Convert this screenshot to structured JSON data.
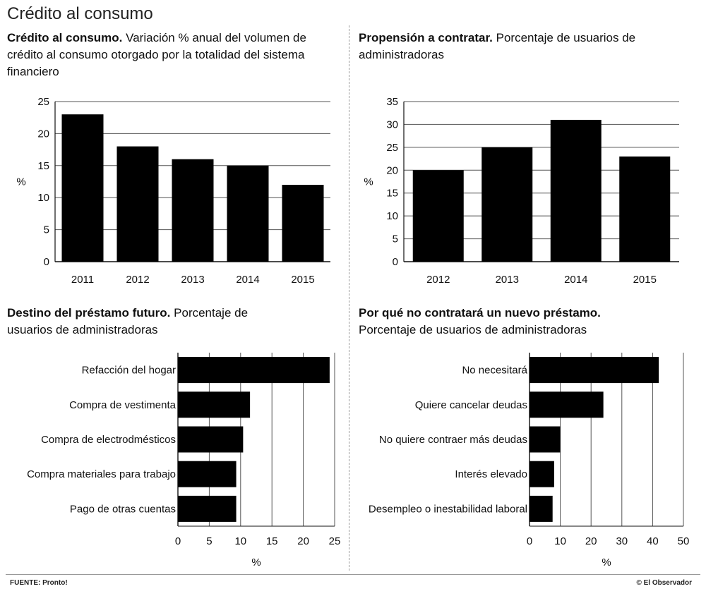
{
  "page": {
    "title": "Crédito al consumo"
  },
  "footer": {
    "source": "FUENTE: Pronto!",
    "credit": "© El Observador"
  },
  "panels": {
    "p1": {
      "title_bold": "Crédito al consumo.",
      "title_rest": " Variación % anual del volumen de crédito al consumo otorgado por la totalidad del sistema financiero"
    },
    "p2": {
      "title_bold": "Propensión a contratar.",
      "title_rest": " Porcentaje de usuarios de administradoras"
    },
    "p3": {
      "title_bold": "Destino del préstamo futuro.",
      "title_rest": " Porcentaje de usuarios de administradoras"
    },
    "p4": {
      "title_bold": "Por qué no contratará un nuevo préstamo.",
      "title_rest": "Porcentaje de usuarios de administradoras"
    }
  },
  "chart_data": [
    {
      "type": "bar",
      "title": "Crédito al consumo. Variación % anual del volumen de crédito al consumo otorgado por la totalidad del sistema financiero",
      "categories": [
        "2011",
        "2012",
        "2013",
        "2014",
        "2015"
      ],
      "values": [
        23,
        18,
        16,
        15,
        12
      ],
      "ylabel": "%",
      "ylim": [
        0,
        25
      ],
      "yticks": [
        0,
        5,
        10,
        15,
        20,
        25
      ],
      "grid": true
    },
    {
      "type": "bar",
      "title": "Propensión a contratar. Porcentaje de usuarios de administradoras",
      "categories": [
        "2012",
        "2013",
        "2014",
        "2015"
      ],
      "values": [
        20,
        25,
        31,
        23
      ],
      "ylabel": "%",
      "ylim": [
        0,
        35
      ],
      "yticks": [
        0,
        5,
        10,
        15,
        20,
        25,
        30,
        35
      ],
      "grid": true
    },
    {
      "type": "bar",
      "orientation": "horizontal",
      "title": "Destino del préstamo futuro. Porcentaje de usuarios de administradoras",
      "categories": [
        "Refacción del hogar",
        "Compra de vestimenta",
        "Compra de electrodmésticos",
        "Compra materiales para trabajo",
        "Pago de otras cuentas"
      ],
      "values": [
        24.2,
        11.5,
        10.4,
        9.3,
        9.3
      ],
      "xlabel": "%",
      "xlim": [
        0,
        25
      ],
      "xticks": [
        0,
        5,
        10,
        15,
        20,
        25
      ],
      "grid": true
    },
    {
      "type": "bar",
      "orientation": "horizontal",
      "title": "Por qué no contratará un nuevo préstamo. Porcentaje de usuarios de administradoras",
      "categories": [
        "No necesitará",
        "Quiere cancelar deudas",
        "No quiere contraer más deudas",
        "Interés elevado",
        "Desempleo o inestabilidad laboral"
      ],
      "values": [
        42,
        24,
        10,
        8,
        7.5
      ],
      "xlabel": "%",
      "xlim": [
        0,
        50
      ],
      "xticks": [
        0,
        10,
        20,
        30,
        40,
        50
      ],
      "grid": true
    }
  ]
}
